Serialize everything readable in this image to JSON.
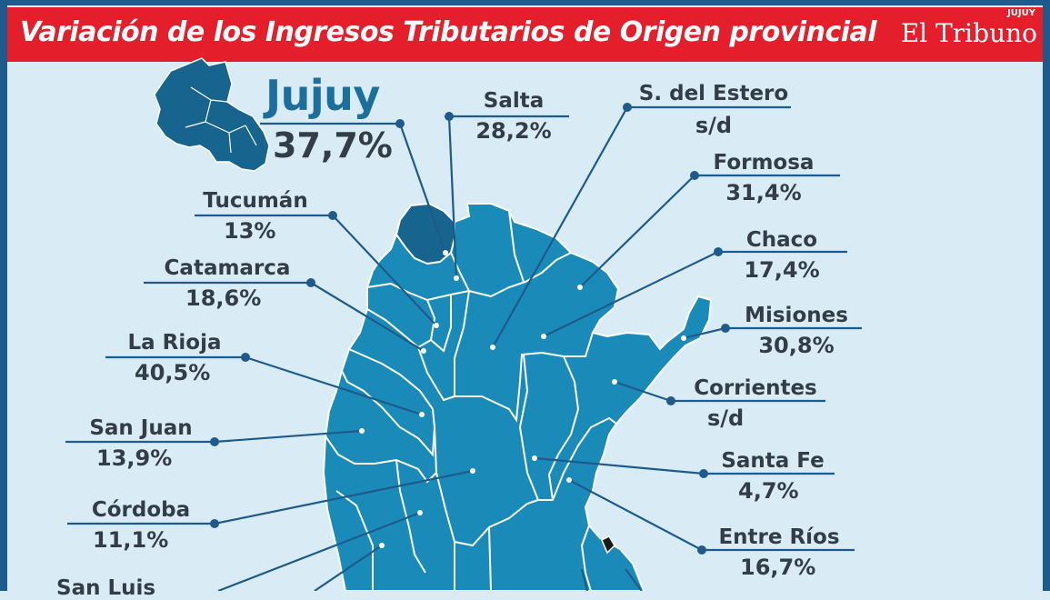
{
  "header": {
    "title": "Variación de los Ingresos Tributarios de Origen provincial",
    "brand": "El Tribuno",
    "brand_sub": "JUJUY"
  },
  "featured": {
    "name": "Jujuy",
    "value": "37,7%"
  },
  "provinces": [
    {
      "key": "salta",
      "name": "Salta",
      "value": "28,2%"
    },
    {
      "key": "estero",
      "name": "S. del Estero",
      "value": "s/d"
    },
    {
      "key": "formosa",
      "name": "Formosa",
      "value": "31,4%"
    },
    {
      "key": "chaco",
      "name": "Chaco",
      "value": "17,4%"
    },
    {
      "key": "misiones",
      "name": "Misiones",
      "value": "30,8%"
    },
    {
      "key": "corrientes",
      "name": "Corrientes",
      "value": "s/d"
    },
    {
      "key": "santafe",
      "name": "Santa Fe",
      "value": "4,7%"
    },
    {
      "key": "entrerios",
      "name": "Entre Ríos",
      "value": "16,7%"
    },
    {
      "key": "tucuman",
      "name": "Tucumán",
      "value": "13%"
    },
    {
      "key": "catamarca",
      "name": "Catamarca",
      "value": "18,6%"
    },
    {
      "key": "larioja",
      "name": "La Rioja",
      "value": "40,5%"
    },
    {
      "key": "sanjuan",
      "name": "San Juan",
      "value": "13,9%"
    },
    {
      "key": "cordoba",
      "name": "Córdoba",
      "value": "11,1%"
    },
    {
      "key": "sanluis",
      "name": "San Luis",
      "value": ""
    }
  ],
  "colors": {
    "header_red": "#e41f2b",
    "background": "#d9ecf5",
    "map_fill": "#1a8bb8",
    "jujuy_fill": "#17658f",
    "leader_line": "#1e5a8c",
    "text": "#333d48"
  }
}
